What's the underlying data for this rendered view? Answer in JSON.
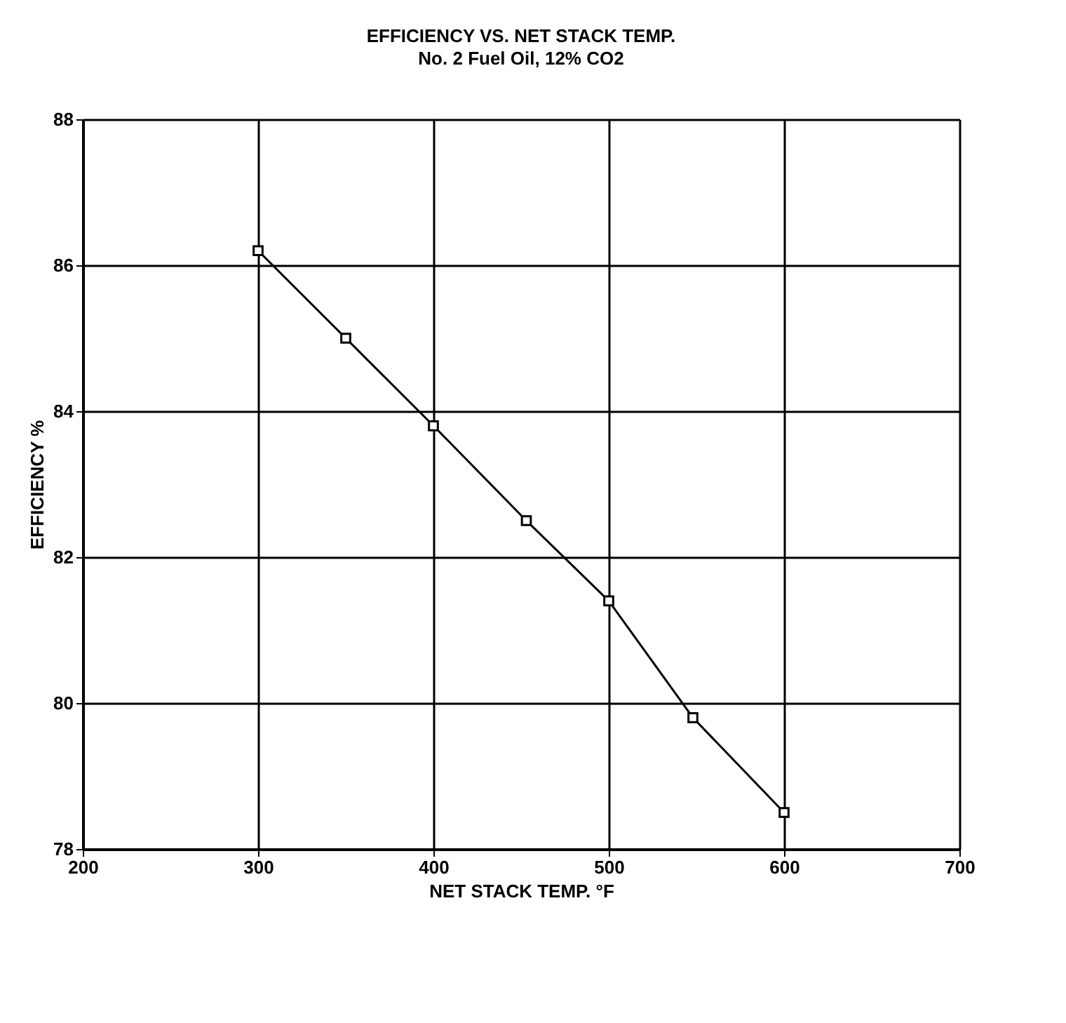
{
  "chart_data": {
    "type": "line",
    "title": "EFFICIENCY VS. NET STACK TEMP.",
    "subtitle": "No. 2 Fuel Oil, 12% CO2",
    "xlabel": "NET STACK TEMP. °F",
    "ylabel": "EFFICIENCY %",
    "x": [
      300,
      350,
      400,
      453,
      500,
      548,
      600
    ],
    "series": [
      {
        "color": "#000000",
        "values": [
          86.2,
          85.0,
          83.8,
          82.5,
          81.4,
          79.8,
          78.5
        ]
      }
    ],
    "xlim": [
      200,
      700
    ],
    "xticks": [
      200,
      300,
      400,
      500,
      600,
      700
    ],
    "ylim": [
      78,
      88
    ],
    "yticks": [
      78,
      80,
      82,
      84,
      86,
      88
    ],
    "grid": true,
    "marker": "square",
    "line_style": "solid"
  }
}
